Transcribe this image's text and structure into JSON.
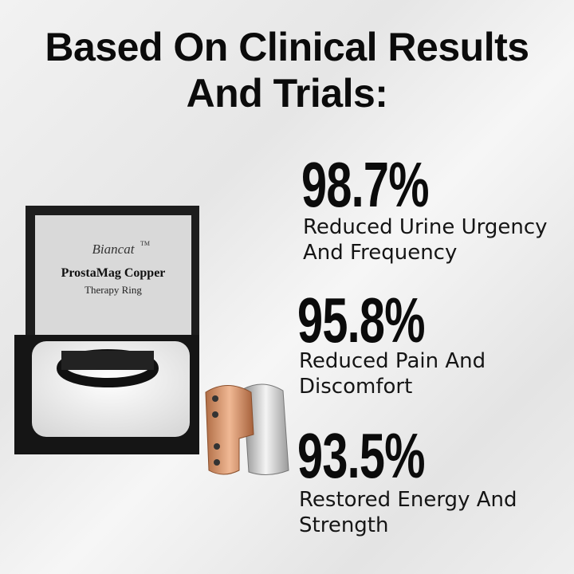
{
  "header": {
    "title_lines": [
      "Based On Clinical Results",
      "And Trials:"
    ]
  },
  "product": {
    "brand": "Biancat",
    "trademark": "TM",
    "name": "ProstaMag Copper",
    "subtitle": "Therapy Ring"
  },
  "stats": [
    {
      "value": "98.7%",
      "lines": [
        "Reduced Urine Urgency",
        "And Frequency"
      ]
    },
    {
      "value": "95.8%",
      "lines": [
        "Reduced Pain And",
        "Discomfort"
      ]
    },
    {
      "value": "93.5%",
      "lines": [
        "Restored Energy And",
        "Strength"
      ]
    }
  ]
}
